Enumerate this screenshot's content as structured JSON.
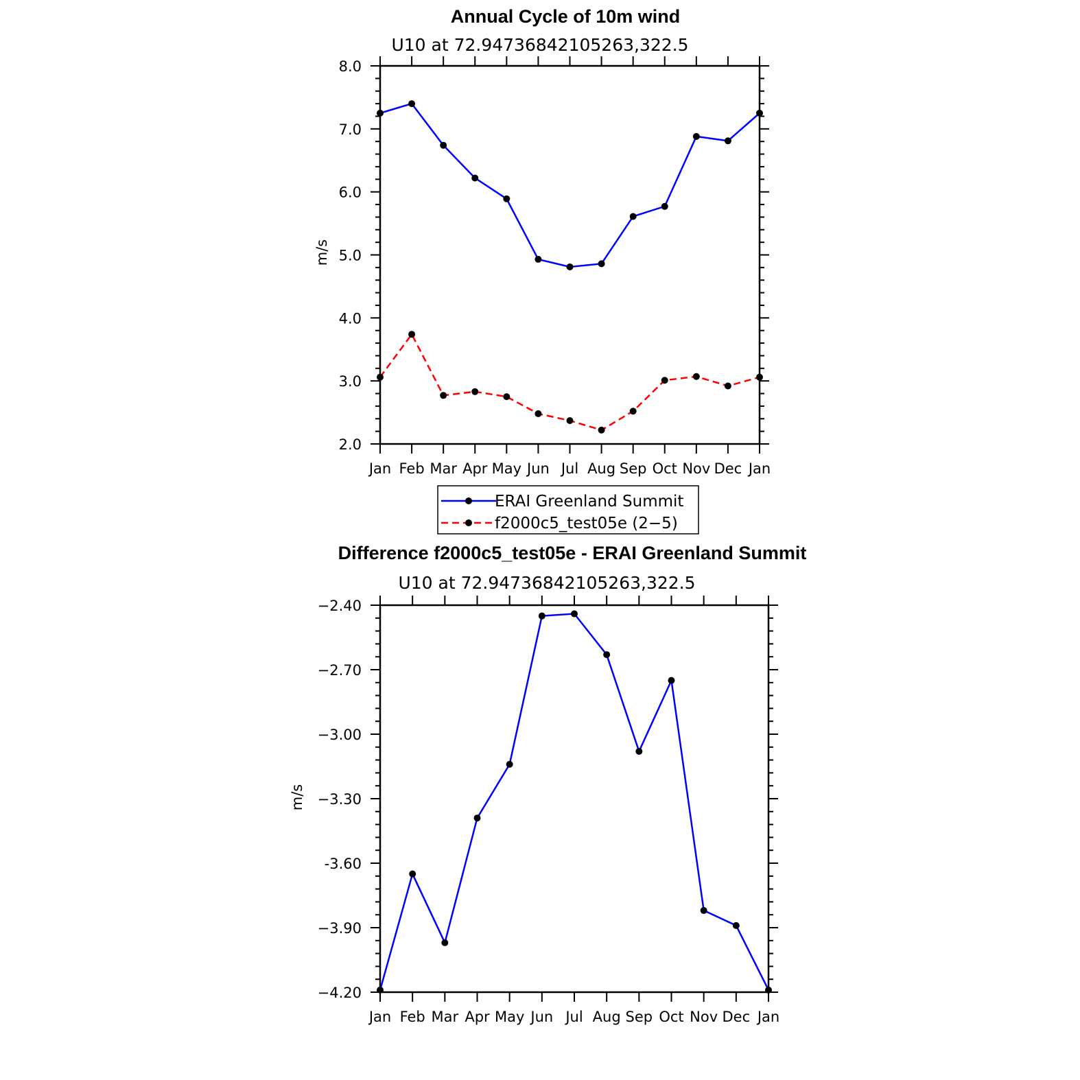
{
  "colors": {
    "erai": "#0000ff",
    "model": "#ff0000",
    "marker": "#000000",
    "axis": "#000000"
  },
  "chart_data": [
    {
      "type": "line",
      "title": "Annual Cycle of 10m wind",
      "subtitle": "U10  at  72.94736842105263,322.5",
      "ylabel": "m/s",
      "xlabel": "",
      "categories": [
        "Jan",
        "Feb",
        "Mar",
        "Apr",
        "May",
        "Jun",
        "Jul",
        "Aug",
        "Sep",
        "Oct",
        "Nov",
        "Dec",
        "Jan"
      ],
      "ylim": [
        2.0,
        8.0
      ],
      "yticks": [
        "2.0",
        "3.0",
        "4.0",
        "5.0",
        "6.0",
        "7.0",
        "8.0"
      ],
      "series": [
        {
          "name": "ERAI Greenland Summit",
          "style": "solid",
          "color": "#0000ff",
          "values": [
            7.25,
            7.4,
            6.74,
            6.22,
            5.89,
            4.93,
            4.81,
            4.86,
            5.61,
            5.77,
            6.88,
            6.81,
            7.25
          ]
        },
        {
          "name": "f2000c5_test05e (2-5)",
          "style": "dashed",
          "color": "#ff0000",
          "values": [
            3.06,
            3.74,
            2.77,
            2.83,
            2.75,
            2.48,
            2.37,
            2.22,
            2.52,
            3.01,
            3.07,
            2.92,
            3.06
          ]
        }
      ],
      "legend": {
        "position": "bottom-center",
        "entries": [
          "ERAI Greenland Summit",
          "f2000c5_test05e (2−5)"
        ]
      }
    },
    {
      "type": "line",
      "title": "Difference f2000c5_test05e - ERAI Greenland Summit",
      "subtitle": "U10  at  72.94736842105263,322.5",
      "ylabel": "m/s",
      "xlabel": "",
      "categories": [
        "Jan",
        "Feb",
        "Mar",
        "Apr",
        "May",
        "Jun",
        "Jul",
        "Aug",
        "Sep",
        "Oct",
        "Nov",
        "Dec",
        "Jan"
      ],
      "ylim": [
        -4.2,
        -2.4
      ],
      "yticks": [
        "−4.20",
        "−3.90",
        "-3.60",
        "−3.30",
        "−3.00",
        "−2.70",
        "−2.40"
      ],
      "series": [
        {
          "name": "Difference",
          "style": "solid",
          "color": "#0000ff",
          "values": [
            -4.19,
            -3.65,
            -3.97,
            -3.39,
            -3.14,
            -2.45,
            -2.44,
            -2.63,
            -3.08,
            -2.75,
            -3.82,
            -3.89,
            -4.19
          ]
        }
      ]
    }
  ]
}
